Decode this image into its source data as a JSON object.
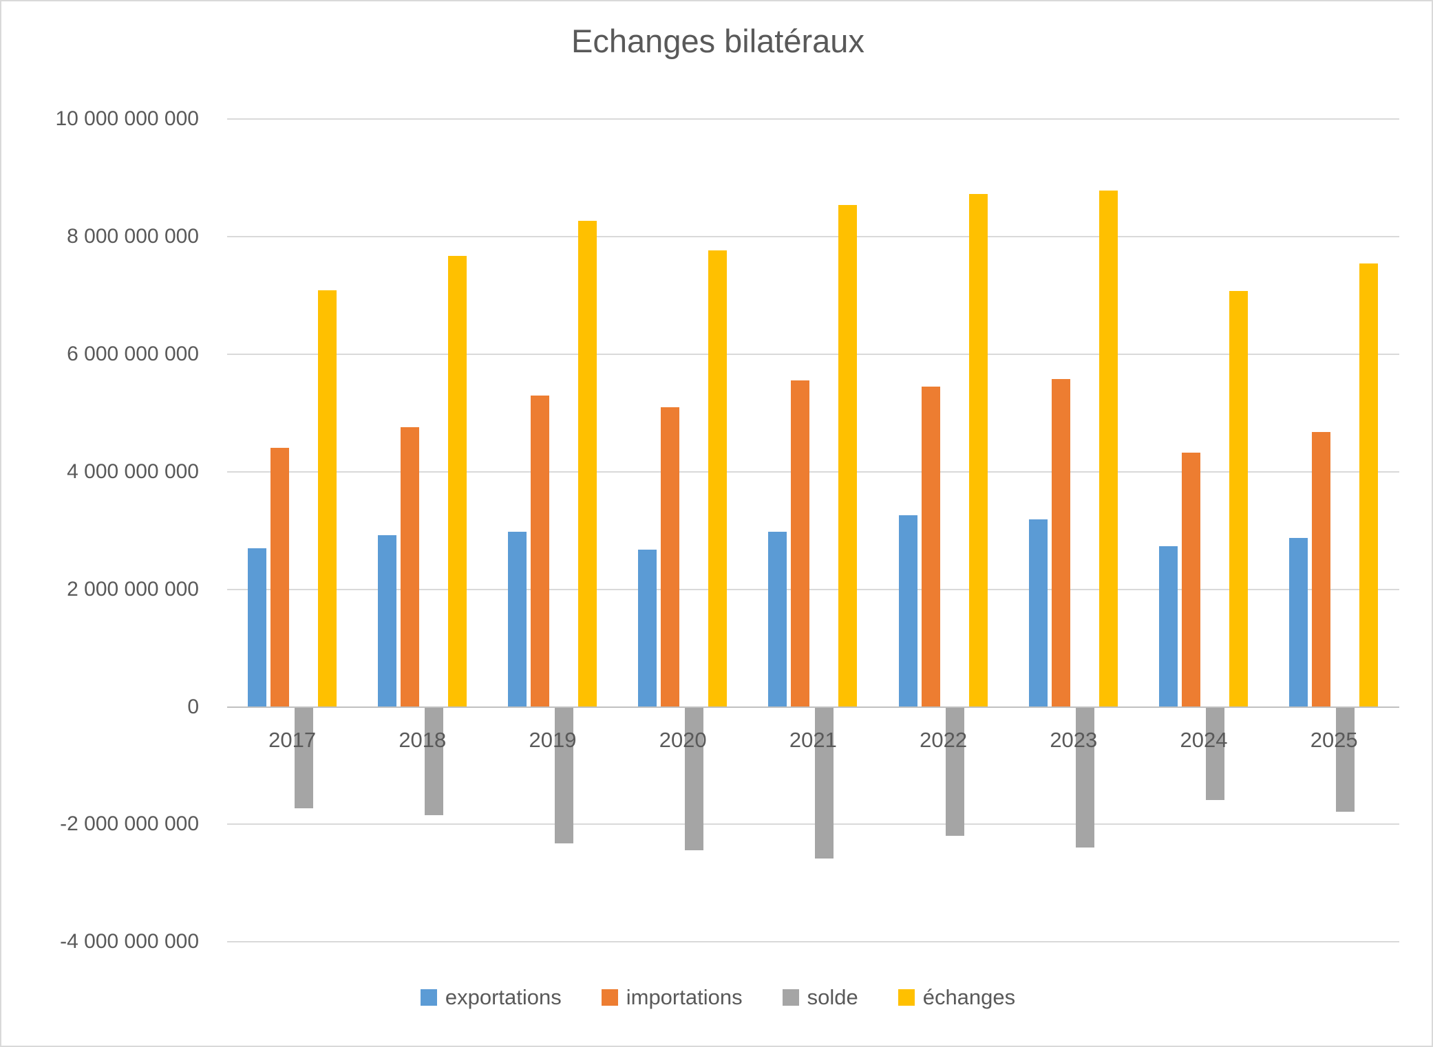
{
  "chart_data": {
    "type": "bar",
    "title": "Echanges bilatéraux",
    "categories": [
      "2017",
      "2018",
      "2019",
      "2020",
      "2021",
      "2022",
      "2023",
      "2024",
      "2025"
    ],
    "series": [
      {
        "name": "exportations",
        "color": "#5B9BD5",
        "values": [
          2700000000,
          2920000000,
          2980000000,
          2670000000,
          2980000000,
          3260000000,
          3190000000,
          2730000000,
          2870000000
        ]
      },
      {
        "name": "importations",
        "color": "#ED7D31",
        "values": [
          4410000000,
          4760000000,
          5290000000,
          5100000000,
          5550000000,
          5450000000,
          5580000000,
          4330000000,
          4670000000
        ]
      },
      {
        "name": "solde",
        "color": "#A5A5A5",
        "values": [
          -1730000000,
          -1840000000,
          -2320000000,
          -2440000000,
          -2580000000,
          -2200000000,
          -2390000000,
          -1590000000,
          -1790000000
        ]
      },
      {
        "name": "échanges",
        "color": "#FFC000",
        "values": [
          7090000000,
          7670000000,
          8270000000,
          7770000000,
          8540000000,
          8720000000,
          8780000000,
          7070000000,
          7540000000
        ]
      }
    ],
    "xlabel": "",
    "ylabel": "",
    "ylim": [
      -4000000000,
      10000000000
    ],
    "y_ticks": [
      {
        "value": 10000000000,
        "label": "10 000 000 000"
      },
      {
        "value": 8000000000,
        "label": "8 000 000 000"
      },
      {
        "value": 6000000000,
        "label": "6 000 000 000"
      },
      {
        "value": 4000000000,
        "label": "4 000 000 000"
      },
      {
        "value": 2000000000,
        "label": "2 000 000 000"
      },
      {
        "value": 0,
        "label": "0"
      },
      {
        "value": -2000000000,
        "label": "-2 000 000 000"
      },
      {
        "value": -4000000000,
        "label": "-4 000 000 000"
      }
    ],
    "grid": "horizontal-only",
    "legend_position": "bottom"
  }
}
